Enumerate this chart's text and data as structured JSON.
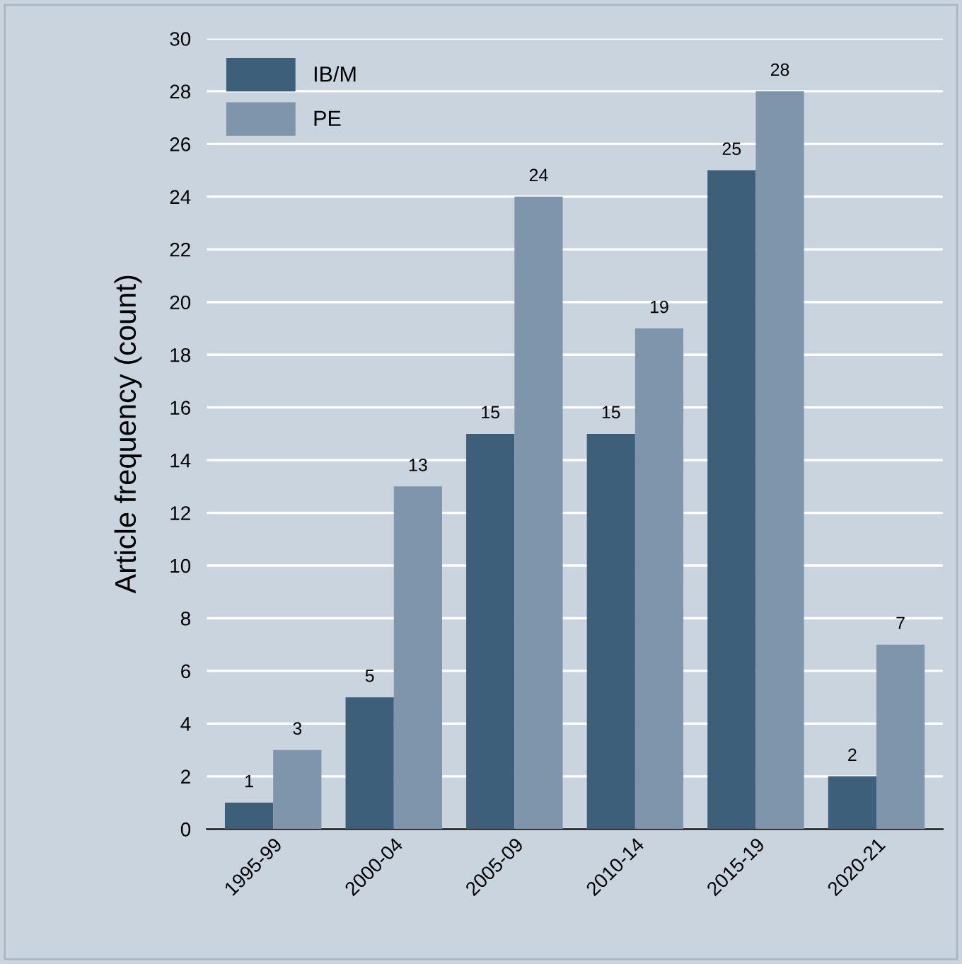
{
  "chart_data": {
    "type": "bar",
    "ylabel": "Article frequency (count)",
    "categories": [
      "1995-99",
      "2000-04",
      "2005-09",
      "2010-14",
      "2015-19",
      "2020-21"
    ],
    "series": [
      {
        "name": "IB/M",
        "color": "#3d5f7a",
        "values": [
          1,
          5,
          15,
          15,
          25,
          2
        ]
      },
      {
        "name": "PE",
        "color": "#7f95ab",
        "values": [
          3,
          13,
          24,
          19,
          28,
          7
        ]
      }
    ],
    "ylim": [
      0,
      30
    ],
    "yticks": [
      0,
      2,
      4,
      6,
      8,
      10,
      12,
      14,
      16,
      18,
      20,
      22,
      24,
      26,
      28,
      30
    ],
    "grid": "y",
    "legend": "top left",
    "data_labels": true
  }
}
